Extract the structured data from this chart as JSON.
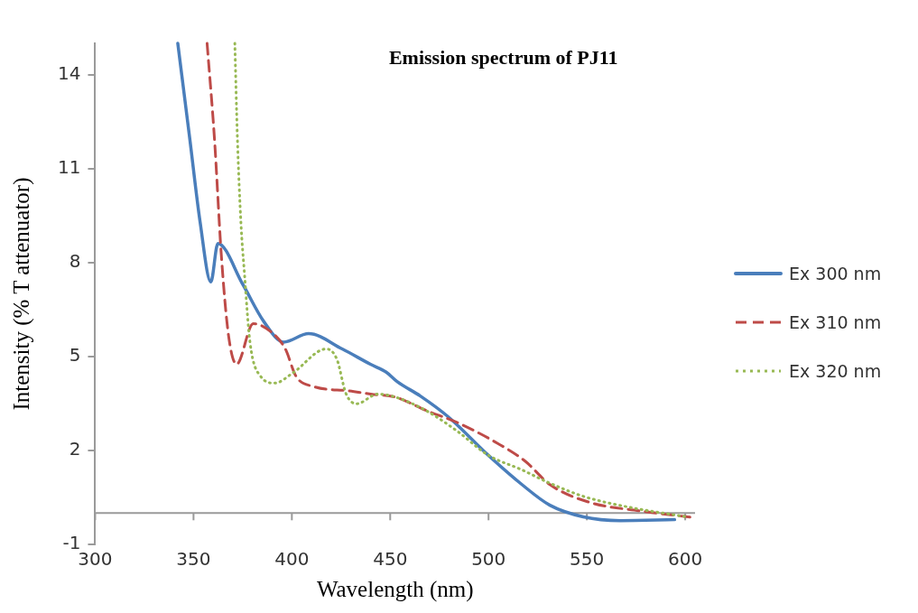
{
  "chart_data": {
    "type": "line",
    "title": "Emission spectrum of PJ11",
    "xlabel": "Wavelength (nm)",
    "ylabel": "Intensity (% T attenuator)",
    "xlim": [
      300,
      605
    ],
    "xticks": [
      300,
      350,
      400,
      450,
      500,
      550,
      600
    ],
    "ylim": [
      -1,
      15
    ],
    "yticks": [
      -1,
      2,
      5,
      8,
      11,
      14
    ],
    "grid": false,
    "legend": "right",
    "marker": "none",
    "series": [
      {
        "name": "Ex 300 nm",
        "color": "#4a7ebb",
        "line_style": "solid",
        "x": [
          342,
          348,
          353.4,
          358.8,
          362.4,
          375,
          385.8,
          395.8,
          408.5,
          425.6,
          440,
          448,
          453.5,
          465.3,
          479.4,
          499.8,
          517,
          531.2,
          548.2,
          567,
          594.6
        ],
        "values": [
          15,
          12,
          9.27,
          7.38,
          8.61,
          7.31,
          6.11,
          5.46,
          5.73,
          5.24,
          4.75,
          4.5,
          4.2,
          3.74,
          3.08,
          1.85,
          0.91,
          0.25,
          -0.12,
          -0.24,
          -0.21
        ]
      },
      {
        "name": "Ex 310 nm",
        "color": "#be4b48",
        "line_style": "dashed",
        "x": [
          356.9,
          360.6,
          364.2,
          367.8,
          371.9,
          380.4,
          389.5,
          396.7,
          402.1,
          411.2,
          429.3,
          440,
          452.8,
          468.5,
          484.2,
          504.5,
          518.6,
          531.2,
          551.5,
          578.2,
          602.4
        ],
        "values": [
          15,
          12,
          8.18,
          5.67,
          4.75,
          6.05,
          5.78,
          5.24,
          4.37,
          4.04,
          3.9,
          3.8,
          3.7,
          3.27,
          2.89,
          2.23,
          1.66,
          0.91,
          0.34,
          0.06,
          -0.13
        ]
      },
      {
        "name": "Ex 320 nm",
        "color": "#98b954",
        "line_style": "dotted",
        "x": [
          371,
          372.3,
          374.1,
          375.9,
          378.7,
          384.1,
          391.3,
          400.4,
          417.5,
          422.9,
          427.5,
          432.9,
          443.8,
          452.8,
          468.3,
          484.2,
          499.8,
          517,
          529.6,
          548.4,
          570.5,
          601.7
        ],
        "values": [
          15,
          12,
          9.27,
          7.64,
          5.46,
          4.37,
          4.15,
          4.47,
          5.24,
          4.91,
          3.82,
          3.49,
          3.8,
          3.7,
          3.27,
          2.61,
          1.85,
          1.38,
          1,
          0.53,
          0.2,
          -0.13
        ]
      }
    ]
  }
}
